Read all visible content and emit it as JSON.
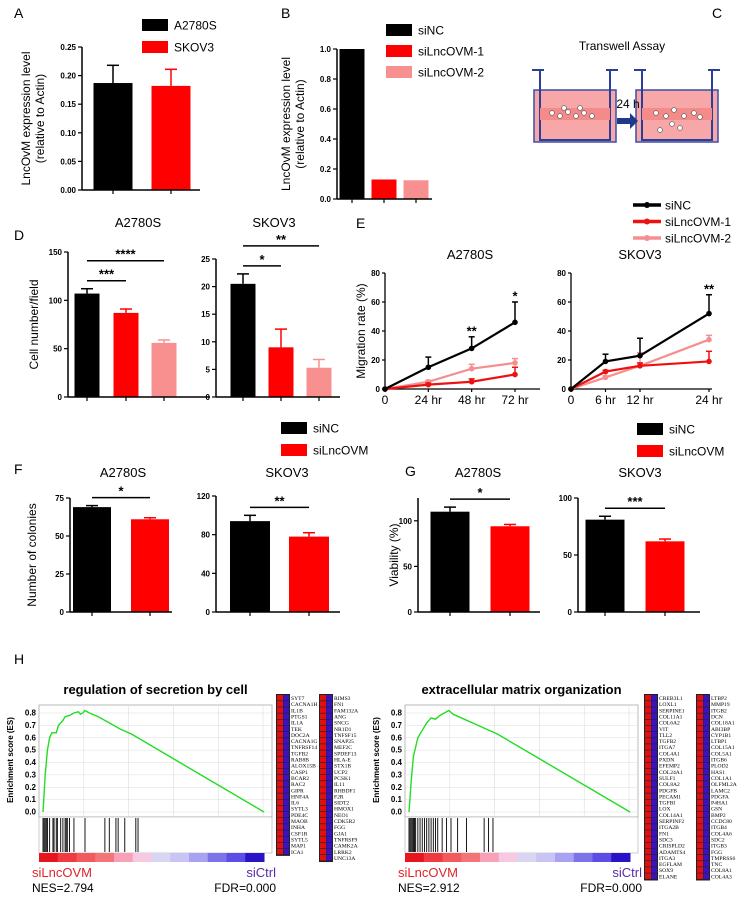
{
  "panels": [
    "A",
    "B",
    "C",
    "D",
    "E",
    "F",
    "G",
    "H"
  ],
  "transwell": {
    "title": "Transwell Assay",
    "time": "24 h"
  },
  "legends": {
    "A": [
      {
        "label": "A2780S",
        "color": "#000000"
      },
      {
        "label": "SKOV3",
        "color": "#ff0000"
      }
    ],
    "B": [
      {
        "label": "siNC",
        "color": "#000000"
      },
      {
        "label": "siLncOVM-1",
        "color": "#ff0000"
      },
      {
        "label": "siLncOVM-2",
        "color": "#f99090"
      }
    ],
    "E": [
      {
        "label": "siNC",
        "color": "#000000"
      },
      {
        "label": "siLncOVM-1",
        "color": "#ee1111"
      },
      {
        "label": "siLncOVM-2",
        "color": "#f58f8f"
      }
    ],
    "F": [
      {
        "label": "siNC",
        "color": "#000000"
      },
      {
        "label": "siLncOVM",
        "color": "#ff0000"
      }
    ],
    "G": [
      {
        "label": "siNC",
        "color": "#000000"
      },
      {
        "label": "siLncOVM",
        "color": "#ff0000"
      }
    ]
  },
  "chart_data": [
    {
      "id": "A",
      "type": "bar",
      "title": "",
      "ylabel": [
        "LncOvM  expression  level",
        "(relative to Actin)"
      ],
      "ylim": [
        0,
        0.25
      ],
      "yticks": [
        0,
        0.05,
        0.1,
        0.15,
        0.2,
        0.25
      ],
      "ytick_labels": [
        "0.00",
        "0.05",
        "0.10",
        "0.15",
        "0.20",
        "0.25"
      ],
      "categories": [
        "A2780S",
        "SKOV3"
      ],
      "values": [
        0.187,
        0.182
      ],
      "errors": [
        0.031,
        0.029
      ],
      "colors": [
        "#000000",
        "#ff0000"
      ],
      "significance": []
    },
    {
      "id": "B",
      "type": "bar",
      "title": "",
      "ylabel": [
        "LncOvM  expression  level",
        "(relative to Actin)"
      ],
      "ylim": [
        0,
        1.0
      ],
      "yticks": [
        0,
        0.2,
        0.4,
        0.6,
        0.8,
        1.0
      ],
      "ytick_labels": [
        "0.0",
        "0.2",
        "0.4",
        "0.6",
        "0.8",
        "1.0"
      ],
      "categories": [
        "siNC",
        "siLncOVM-1",
        "siLncOVM-2"
      ],
      "values": [
        1.0,
        0.13,
        0.125
      ],
      "errors": [
        0,
        0,
        0
      ],
      "colors": [
        "#000000",
        "#ff0000",
        "#f99090"
      ],
      "significance": []
    },
    {
      "id": "D1",
      "type": "bar",
      "title": "A2780S",
      "ylabel": [
        "Cell number/field"
      ],
      "ylim": [
        0,
        150
      ],
      "yticks": [
        0,
        50,
        100,
        150
      ],
      "ytick_labels": [
        "0",
        "50",
        "100",
        "150"
      ],
      "categories": [
        "siNC",
        "siLncOVM-1",
        "siLncOVM-2"
      ],
      "values": [
        107,
        87,
        56
      ],
      "errors": [
        5,
        4,
        3
      ],
      "colors": [
        "#000000",
        "#ff0000",
        "#f99090"
      ],
      "significance": [
        {
          "from": 0,
          "to": 2,
          "label": "****"
        },
        {
          "from": 0,
          "to": 1,
          "label": "***"
        }
      ]
    },
    {
      "id": "D2",
      "type": "bar",
      "title": "SKOV3",
      "ylabel": [],
      "ylim": [
        0,
        25
      ],
      "yticks": [
        0,
        5,
        10,
        15,
        20,
        25
      ],
      "ytick_labels": [
        "0",
        "5",
        "10",
        "15",
        "20",
        "25"
      ],
      "categories": [
        "siNC",
        "siLncOVM-1",
        "siLncOVM-2"
      ],
      "values": [
        20.5,
        9,
        5.3
      ],
      "errors": [
        1.8,
        3.3,
        1.5
      ],
      "colors": [
        "#000000",
        "#ff0000",
        "#f99090"
      ],
      "significance": [
        {
          "from": 0,
          "to": 2,
          "label": "**"
        },
        {
          "from": 0,
          "to": 1,
          "label": "*"
        }
      ]
    },
    {
      "id": "E1",
      "type": "line",
      "title": "A2780S",
      "ylabel": "Migration rate (%)",
      "ylim": [
        0,
        80
      ],
      "xlim": [
        0,
        72
      ],
      "yticks": [
        0,
        20,
        40,
        60,
        80
      ],
      "ytick_labels": [
        "0",
        "20",
        "40",
        "60",
        "80"
      ],
      "x": [
        0,
        24,
        48,
        72
      ],
      "xtick_labels": [
        "0",
        "24 hr",
        "48 hr",
        "72 hr"
      ],
      "series": [
        {
          "name": "siNC",
          "color": "#000000",
          "values": [
            0,
            15,
            28,
            46
          ],
          "errors": [
            0,
            7,
            8,
            14
          ]
        },
        {
          "name": "siLncOVM-1",
          "color": "#ee1111",
          "values": [
            0,
            3,
            5,
            10
          ],
          "errors": [
            0,
            1,
            2,
            5
          ]
        },
        {
          "name": "siLncOVM-2",
          "color": "#f58f8f",
          "values": [
            0,
            5,
            14,
            18
          ],
          "errors": [
            0,
            1,
            3,
            3
          ]
        }
      ],
      "annotations": [
        {
          "x": 48,
          "y": 37,
          "label": "**"
        },
        {
          "x": 72,
          "y": 61,
          "label": "*"
        }
      ]
    },
    {
      "id": "E2",
      "type": "line",
      "title": "SKOV3",
      "ylabel": "",
      "ylim": [
        0,
        80
      ],
      "xlim": [
        0,
        24
      ],
      "yticks": [
        0,
        20,
        40,
        60,
        80
      ],
      "ytick_labels": [
        "0",
        "20",
        "40",
        "60",
        "80"
      ],
      "x": [
        0,
        6,
        12,
        24
      ],
      "xtick_labels": [
        "0",
        "6 hr",
        "12 hr",
        "24 hr"
      ],
      "series": [
        {
          "name": "siNC",
          "color": "#000000",
          "values": [
            0,
            19,
            23,
            52
          ],
          "errors": [
            0,
            5,
            12,
            13
          ]
        },
        {
          "name": "siLncOVM-1",
          "color": "#ee1111",
          "values": [
            0,
            12,
            16,
            19
          ],
          "errors": [
            0,
            1,
            2,
            7
          ]
        },
        {
          "name": "siLncOVM-2",
          "color": "#f58f8f",
          "values": [
            0,
            8,
            16,
            34
          ],
          "errors": [
            0,
            1,
            9,
            3
          ]
        }
      ],
      "annotations": [
        {
          "x": 24,
          "y": 66,
          "label": "**"
        }
      ]
    },
    {
      "id": "F1",
      "type": "bar",
      "title": "A2780S",
      "ylabel": [
        "Number of colonies"
      ],
      "ylim": [
        0,
        75
      ],
      "yticks": [
        0,
        25,
        50,
        75
      ],
      "ytick_labels": [
        "0",
        "25",
        "50",
        "75"
      ],
      "categories": [
        "siNC",
        "siLncOVM"
      ],
      "values": [
        69,
        61
      ],
      "errors": [
        1,
        1
      ],
      "colors": [
        "#000000",
        "#ff0000"
      ],
      "significance": [
        {
          "from": 0,
          "to": 1,
          "label": "*"
        }
      ]
    },
    {
      "id": "F2",
      "type": "bar",
      "title": "SKOV3",
      "ylabel": [],
      "ylim": [
        0,
        120
      ],
      "yticks": [
        0,
        40,
        80,
        120
      ],
      "ytick_labels": [
        "0",
        "40",
        "80",
        "120"
      ],
      "categories": [
        "siNC",
        "siLncOVM"
      ],
      "values": [
        94,
        78
      ],
      "errors": [
        6,
        4
      ],
      "colors": [
        "#000000",
        "#ff0000"
      ],
      "significance": [
        {
          "from": 0,
          "to": 1,
          "label": "**"
        }
      ]
    },
    {
      "id": "G1",
      "type": "bar",
      "title": "A2780S",
      "ylabel": [
        "Viability (%)"
      ],
      "ylim": [
        0,
        125
      ],
      "yticks": [
        0,
        50,
        100
      ],
      "ytick_labels": [
        "0",
        "50",
        "100"
      ],
      "categories": [
        "siNC",
        "siLncOVM"
      ],
      "values": [
        110,
        94
      ],
      "errors": [
        5,
        2
      ],
      "colors": [
        "#000000",
        "#ff0000"
      ],
      "significance": [
        {
          "from": 0,
          "to": 1,
          "label": "*"
        }
      ]
    },
    {
      "id": "G2",
      "type": "bar",
      "title": "SKOV3",
      "ylabel": [],
      "ylim": [
        0,
        100
      ],
      "yticks": [
        0,
        50,
        100
      ],
      "ytick_labels": [
        "0",
        "50",
        "100"
      ],
      "categories": [
        "siNC",
        "siLncOVM"
      ],
      "values": [
        81,
        62
      ],
      "errors": [
        3,
        2
      ],
      "colors": [
        "#000000",
        "#ff0000"
      ],
      "significance": [
        {
          "from": 0,
          "to": 1,
          "label": "***"
        }
      ]
    },
    {
      "id": "H1",
      "type": "line",
      "title": "regulation of secretion by cell",
      "ylabel": "Enrichment score (ES)",
      "ylim": [
        0,
        0.85
      ],
      "yticks": [
        0,
        0.1,
        0.2,
        0.3,
        0.4,
        0.5,
        0.6,
        0.7,
        0.8
      ],
      "ytick_labels": [
        "0.0",
        "0.1",
        "0.2",
        "0.3",
        "0.4",
        "0.5",
        "0.6",
        "0.7",
        "0.8"
      ],
      "es_curve": [
        [
          0,
          0
        ],
        [
          0.01,
          0.3
        ],
        [
          0.02,
          0.5
        ],
        [
          0.03,
          0.6
        ],
        [
          0.04,
          0.64
        ],
        [
          0.06,
          0.64
        ],
        [
          0.07,
          0.7
        ],
        [
          0.09,
          0.74
        ],
        [
          0.1,
          0.77
        ],
        [
          0.12,
          0.78
        ],
        [
          0.14,
          0.8
        ],
        [
          0.16,
          0.81
        ],
        [
          0.17,
          0.79
        ],
        [
          0.18,
          0.8
        ],
        [
          0.19,
          0.82
        ],
        [
          0.21,
          0.8
        ],
        [
          0.25,
          0.77
        ],
        [
          0.3,
          0.72
        ],
        [
          0.35,
          0.67
        ],
        [
          0.4,
          0.63
        ],
        [
          0.6,
          0.42
        ],
        [
          0.8,
          0.21
        ],
        [
          1,
          0
        ]
      ],
      "hits": [
        0,
        0.005,
        0.01,
        0.015,
        0.02,
        0.03,
        0.045,
        0.05,
        0.06,
        0.065,
        0.08,
        0.09,
        0.1,
        0.105,
        0.11,
        0.12,
        0.14,
        0.19,
        0.28,
        0.3,
        0.33,
        0.34,
        0.37,
        0.42,
        0.43
      ],
      "phenotype_left": "siLncOVM",
      "phenotype_right": "siCtrl",
      "nes": "NES=2.794",
      "fdr": "FDR=0.000",
      "genes": [
        [
          "SYT7",
          "CACNA1H",
          "IL1B",
          "PTGS1",
          "IL1A",
          "TEK",
          "DOC2A",
          "CACNA1G",
          "TNFRSF14",
          "TGFB2",
          "RAB8B",
          "ALOX15B",
          "CASP1",
          "BCAR2",
          "RAC2",
          "GIPR",
          "HNF4A",
          "IL6",
          "SYTL3",
          "PDE4C",
          "MAOB",
          "INHA",
          "CSF1R",
          "SYTL5",
          "MAP1",
          "ICA1"
        ],
        [
          "RIMS3",
          "FN1",
          "FAM132A",
          "ANG",
          "SNCG",
          "NR1D1",
          "TNFSF15",
          "SNAP25",
          "MEF2C",
          "SPDEF13",
          "HLA-E",
          "STX1B",
          "UCP2",
          "PCSK1",
          "IL11",
          "RHBDF1",
          "F2R",
          "SIDT2",
          "HMOX1",
          "NEO1",
          "CDK5R2",
          "FGG",
          "GJA1",
          "TNFRSF9",
          "CAMK2A",
          "LRRK2",
          "UNC13A"
        ]
      ]
    },
    {
      "id": "H2",
      "type": "line",
      "title": "extracellular matrix organization",
      "ylabel": "Enrichment score (ES)",
      "ylim": [
        0,
        0.85
      ],
      "yticks": [
        0,
        0.1,
        0.2,
        0.3,
        0.4,
        0.5,
        0.6,
        0.7,
        0.8
      ],
      "ytick_labels": [
        "0.0",
        "0.1",
        "0.2",
        "0.3",
        "0.4",
        "0.5",
        "0.6",
        "0.7",
        "0.8"
      ],
      "es_curve": [
        [
          0,
          0
        ],
        [
          0.01,
          0.25
        ],
        [
          0.02,
          0.45
        ],
        [
          0.04,
          0.6
        ],
        [
          0.06,
          0.66
        ],
        [
          0.08,
          0.72
        ],
        [
          0.1,
          0.76
        ],
        [
          0.12,
          0.75
        ],
        [
          0.14,
          0.78
        ],
        [
          0.16,
          0.8
        ],
        [
          0.18,
          0.82
        ],
        [
          0.2,
          0.79
        ],
        [
          0.25,
          0.75
        ],
        [
          0.3,
          0.71
        ],
        [
          0.35,
          0.67
        ],
        [
          0.4,
          0.63
        ],
        [
          0.6,
          0.42
        ],
        [
          0.8,
          0.21
        ],
        [
          1,
          0
        ]
      ],
      "hits": [
        0,
        0.005,
        0.01,
        0.015,
        0.02,
        0.025,
        0.03,
        0.04,
        0.05,
        0.06,
        0.07,
        0.08,
        0.09,
        0.1,
        0.11,
        0.12,
        0.13,
        0.15,
        0.17,
        0.19,
        0.22,
        0.26,
        0.34,
        0.36,
        0.38
      ],
      "phenotype_left": "siLncOVM",
      "phenotype_right": "siCtrl",
      "nes": "NES=2.912",
      "fdr": "FDR=0.000",
      "genes": [
        [
          "CREB3L1",
          "LOXL1",
          "SERPINE1",
          "COL11A1",
          "COL6A2",
          "VIT",
          "TLL2",
          "TGFB2",
          "ITGA7",
          "COL4A1",
          "PXDN",
          "EFEMP2",
          "COL24A1",
          "SULF1",
          "COL8A2",
          "PDGFB",
          "PECAM1",
          "TGFBI",
          "LOX",
          "COL14A1",
          "SERPINF2",
          "ITGA2B",
          "FN1",
          "SDC3",
          "CRISPLD2",
          "ADAMTS4",
          "ITGA3",
          "EGFLAM",
          "SOX9",
          "ELANE"
        ],
        [
          "LTBP2",
          "MMP19",
          "ITGB2",
          "DCN",
          "COL18A1",
          "ABI3BP",
          "CYP1B1",
          "LTBP1",
          "COL15A1",
          "COL5A1",
          "ITGB6",
          "PLOD2",
          "HAS1",
          "COL1A1",
          "OLFML2A",
          "LAMC2",
          "PDGFA",
          "P4HA1",
          "GSN",
          "BMP2",
          "CCDC80",
          "ITGB4",
          "COL4A6",
          "SDC2",
          "ITGB3",
          "FGG",
          "TMPRSS6",
          "TNC",
          "COL8A1",
          "COL4A3"
        ]
      ]
    }
  ]
}
